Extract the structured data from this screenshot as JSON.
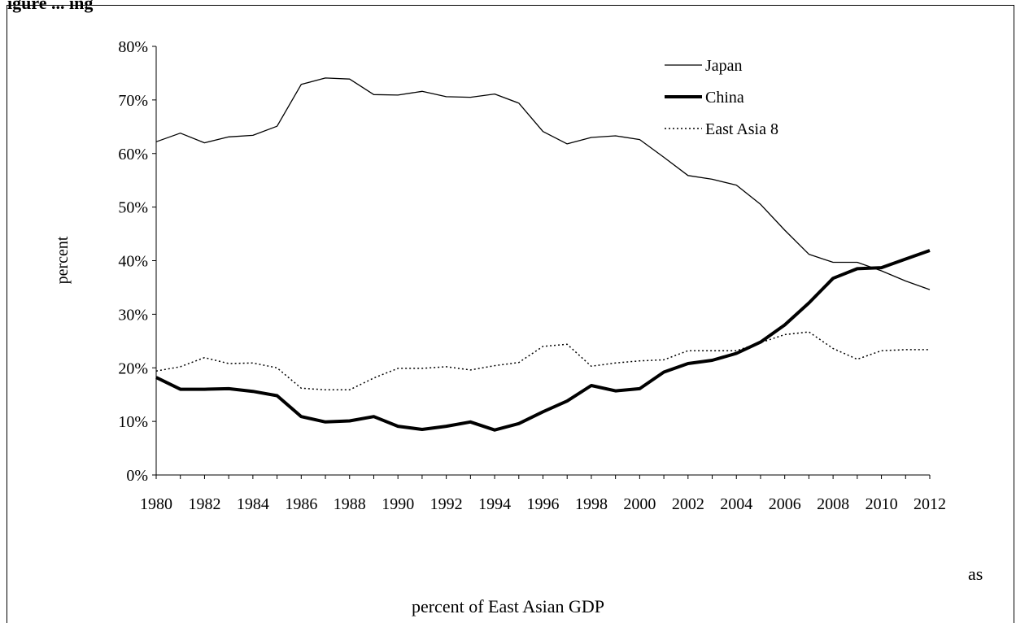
{
  "header_fragment": "igure ... ing",
  "footer": {
    "line1": "as",
    "line2": "percent of East Asian GDP"
  },
  "chart_data": {
    "type": "line",
    "title": "",
    "xlabel": "",
    "ylabel": "percent",
    "ylim": [
      0,
      0.8
    ],
    "yticks": [
      "0%",
      "10%",
      "20%",
      "30%",
      "40%",
      "50%",
      "60%",
      "70%",
      "80%"
    ],
    "x": [
      1980,
      1981,
      1982,
      1983,
      1984,
      1985,
      1986,
      1987,
      1988,
      1989,
      1990,
      1991,
      1992,
      1993,
      1994,
      1995,
      1996,
      1997,
      1998,
      1999,
      2000,
      2001,
      2002,
      2003,
      2004,
      2005,
      2006,
      2007,
      2008,
      2009,
      2010,
      2011,
      2012
    ],
    "xticks": [
      "1980",
      "1982",
      "1984",
      "1986",
      "1988",
      "1990",
      "1992",
      "1994",
      "1996",
      "1998",
      "2000",
      "2002",
      "2004",
      "2006",
      "2008",
      "2010",
      "2012"
    ],
    "legend_position": "top-right",
    "grid": false,
    "series": [
      {
        "name": "Japan",
        "style": "thin-solid",
        "values": [
          0.622,
          0.638,
          0.62,
          0.631,
          0.634,
          0.651,
          0.729,
          0.741,
          0.739,
          0.71,
          0.709,
          0.716,
          0.706,
          0.705,
          0.711,
          0.694,
          0.641,
          0.618,
          0.63,
          0.633,
          0.626,
          0.593,
          0.559,
          0.552,
          0.541,
          0.505,
          0.457,
          0.412,
          0.397,
          0.397,
          0.381,
          0.362,
          0.346
        ]
      },
      {
        "name": "China",
        "style": "thick-solid",
        "values": [
          0.182,
          0.16,
          0.16,
          0.161,
          0.156,
          0.148,
          0.109,
          0.099,
          0.101,
          0.109,
          0.091,
          0.085,
          0.091,
          0.099,
          0.084,
          0.096,
          0.118,
          0.138,
          0.167,
          0.157,
          0.161,
          0.192,
          0.208,
          0.214,
          0.227,
          0.248,
          0.28,
          0.321,
          0.367,
          0.385,
          0.387,
          0.403,
          0.419
        ]
      },
      {
        "name": "East Asia 8",
        "style": "dotted",
        "values": [
          0.194,
          0.202,
          0.219,
          0.208,
          0.209,
          0.2,
          0.162,
          0.159,
          0.159,
          0.181,
          0.199,
          0.199,
          0.202,
          0.196,
          0.204,
          0.21,
          0.24,
          0.244,
          0.203,
          0.209,
          0.213,
          0.215,
          0.232,
          0.232,
          0.232,
          0.247,
          0.262,
          0.267,
          0.236,
          0.216,
          0.232,
          0.234,
          0.234
        ]
      }
    ]
  }
}
